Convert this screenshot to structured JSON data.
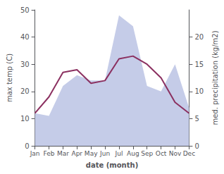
{
  "chart_data": {
    "type": "line",
    "xlabel": "date (month)",
    "ylabel": "max temp (C)",
    "y2label": "med. precipitation (kg/m2)",
    "categories": [
      "Jan",
      "Feb",
      "Mar",
      "Apr",
      "May",
      "Jun",
      "Jul",
      "Aug",
      "Sep",
      "Oct",
      "Nov",
      "Dec"
    ],
    "series": [
      {
        "type": "area",
        "axis": "y2",
        "color": "#c5cce8",
        "values": [
          6,
          5.5,
          11,
          13,
          12,
          12,
          24,
          22,
          11,
          10,
          15,
          7
        ]
      },
      {
        "type": "line",
        "color": "#8b3060",
        "values": [
          12,
          18,
          27,
          28,
          23,
          24,
          32,
          33,
          30,
          25,
          16,
          12
        ]
      }
    ],
    "ylim": [
      0,
      50
    ],
    "yticks": [
      0,
      10,
      20,
      30,
      40,
      50
    ],
    "y2lim": [
      0,
      25
    ],
    "y2ticks": [
      0,
      5,
      10,
      15,
      20
    ],
    "grid": false
  }
}
